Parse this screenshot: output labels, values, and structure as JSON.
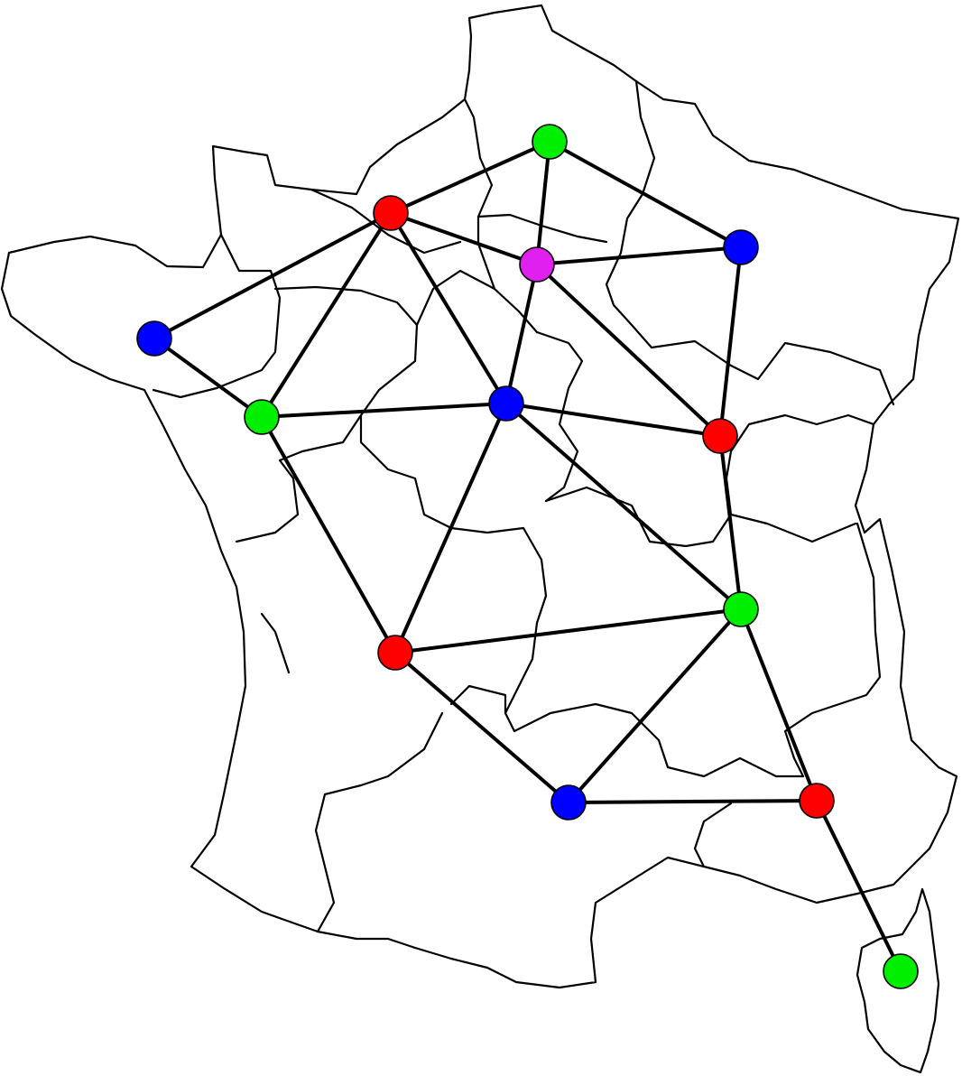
{
  "colors": {
    "red": "#ff0000",
    "green": "#00ee00",
    "blue": "#0000ff",
    "magenta": "#e020ee",
    "line": "#000000"
  },
  "nodes": [
    {
      "id": "n1",
      "color": "green"
    },
    {
      "id": "n2",
      "color": "red"
    },
    {
      "id": "n3",
      "color": "magenta"
    },
    {
      "id": "n4",
      "color": "blue"
    },
    {
      "id": "n5",
      "color": "blue"
    },
    {
      "id": "n6",
      "color": "green"
    },
    {
      "id": "n7",
      "color": "blue"
    },
    {
      "id": "n8",
      "color": "red"
    },
    {
      "id": "n9",
      "color": "green"
    },
    {
      "id": "n10",
      "color": "red"
    },
    {
      "id": "n11",
      "color": "blue"
    },
    {
      "id": "n12",
      "color": "red"
    },
    {
      "id": "n13",
      "color": "green"
    }
  ],
  "edges": [
    [
      "n1",
      "n2"
    ],
    [
      "n1",
      "n3"
    ],
    [
      "n1",
      "n4"
    ],
    [
      "n2",
      "n5"
    ],
    [
      "n2",
      "n6"
    ],
    [
      "n2",
      "n3"
    ],
    [
      "n2",
      "n7"
    ],
    [
      "n3",
      "n4"
    ],
    [
      "n3",
      "n7"
    ],
    [
      "n3",
      "n8"
    ],
    [
      "n4",
      "n8"
    ],
    [
      "n5",
      "n6"
    ],
    [
      "n6",
      "n7"
    ],
    [
      "n6",
      "n10"
    ],
    [
      "n7",
      "n8"
    ],
    [
      "n7",
      "n10"
    ],
    [
      "n7",
      "n9"
    ],
    [
      "n8",
      "n9"
    ],
    [
      "n9",
      "n10"
    ],
    [
      "n9",
      "n11"
    ],
    [
      "n9",
      "n12"
    ],
    [
      "n10",
      "n11"
    ],
    [
      "n11",
      "n12"
    ],
    [
      "n12",
      "n13"
    ]
  ]
}
